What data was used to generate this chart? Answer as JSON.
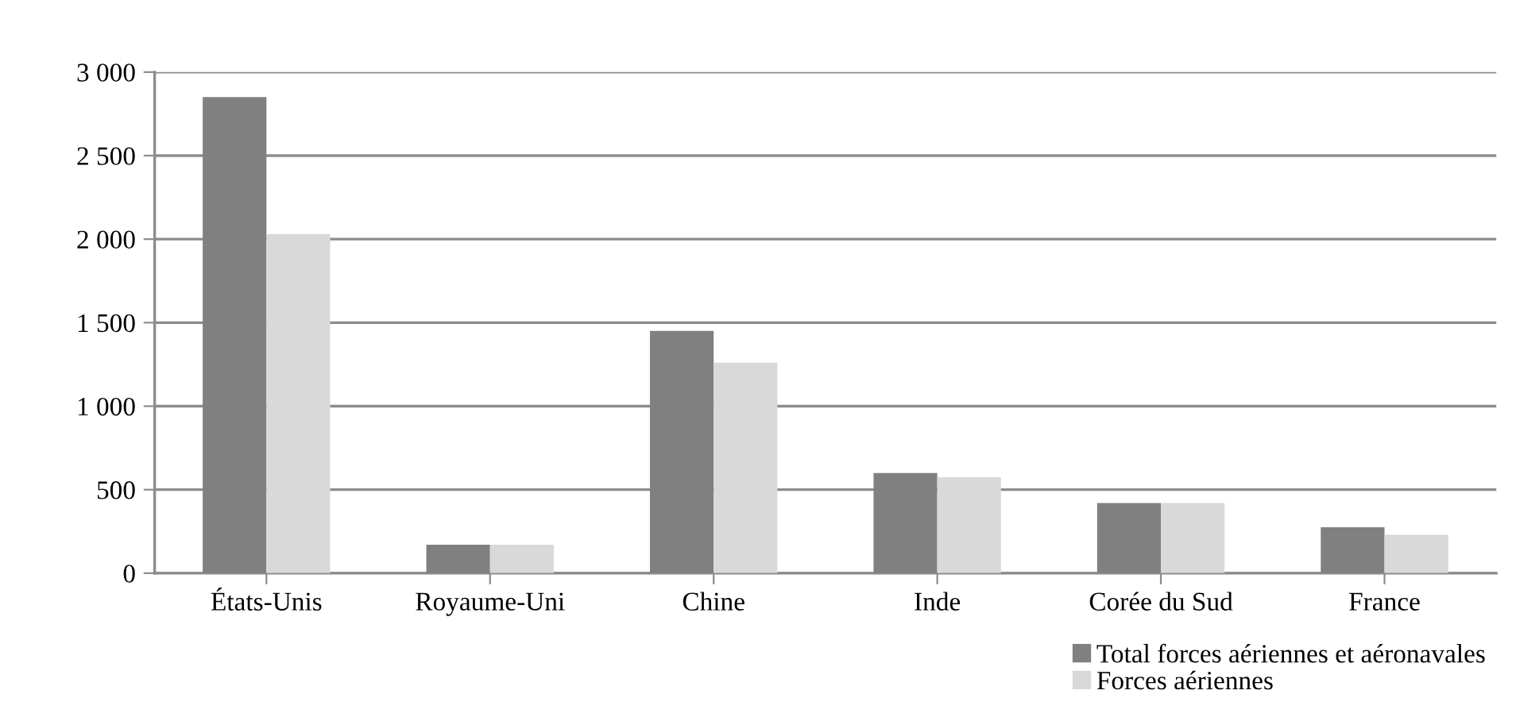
{
  "chart_data": {
    "type": "bar",
    "categories": [
      "États-Unis",
      "Royaume-Uni",
      "Chine",
      "Inde",
      "Corée du Sud",
      "France"
    ],
    "series": [
      {
        "name": "Total forces aériennes et aéronavales",
        "color": "#808080",
        "values": [
          2850,
          170,
          1450,
          600,
          420,
          275
        ]
      },
      {
        "name": "Forces aériennes",
        "color": "#d9d9d9",
        "values": [
          2030,
          170,
          1260,
          575,
          420,
          230
        ]
      }
    ],
    "ylim": [
      0,
      3000
    ],
    "yticks": [
      0,
      {
        "value": 500,
        "label": "500"
      },
      {
        "value": 1000,
        "label": "1 000"
      },
      {
        "value": 1500,
        "label": "1 500"
      },
      {
        "value": 2000,
        "label": "2 000"
      },
      {
        "value": 2500,
        "label": "2 500"
      },
      {
        "value": 3000,
        "label": "3 000"
      }
    ],
    "grid": "y",
    "legend": "bottom right"
  }
}
